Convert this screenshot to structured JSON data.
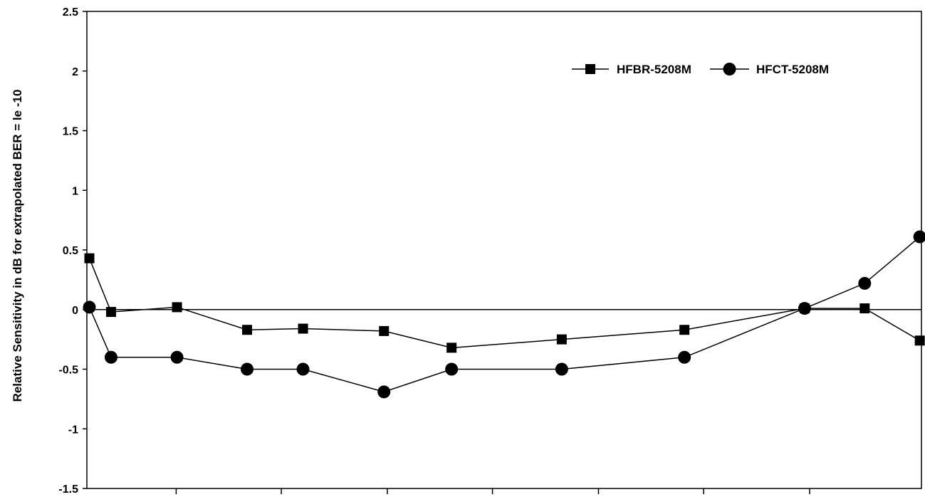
{
  "chart_data": {
    "type": "line",
    "title": "",
    "xlabel": "",
    "ylabel": "Relative Sensitivity in dB for extrapolated BER = le -10",
    "ylim": [
      -1.5,
      2.5
    ],
    "yticks": [
      2.5,
      2,
      1.5,
      1,
      0.5,
      0,
      -0.5,
      -1,
      -1.5
    ],
    "ytick_labels": [
      "2.5",
      "2",
      "1.5",
      "1",
      "0.5",
      "0",
      "-0.5",
      "-1",
      "-1.5"
    ],
    "xlim": [
      0,
      100
    ],
    "xticks": [
      10.7,
      23.3,
      36.0,
      48.6,
      61.3,
      73.9,
      86.6
    ],
    "zero_line": true,
    "grid": false,
    "legend_position": "top-right",
    "series": [
      {
        "name": "HFBR-5208M",
        "marker": "square",
        "color": "#000000",
        "points": [
          {
            "x": 0.3,
            "y": 0.43
          },
          {
            "x": 2.9,
            "y": -0.02
          },
          {
            "x": 10.8,
            "y": 0.02
          },
          {
            "x": 19.2,
            "y": -0.17
          },
          {
            "x": 25.9,
            "y": -0.16
          },
          {
            "x": 35.6,
            "y": -0.18
          },
          {
            "x": 43.7,
            "y": -0.32
          },
          {
            "x": 56.9,
            "y": -0.25
          },
          {
            "x": 71.6,
            "y": -0.17
          },
          {
            "x": 86.0,
            "y": 0.01
          },
          {
            "x": 93.2,
            "y": 0.01
          },
          {
            "x": 99.8,
            "y": -0.26
          }
        ]
      },
      {
        "name": "HFCT-5208M",
        "marker": "circle",
        "color": "#000000",
        "points": [
          {
            "x": 0.3,
            "y": 0.02
          },
          {
            "x": 2.9,
            "y": -0.4
          },
          {
            "x": 10.8,
            "y": -0.4
          },
          {
            "x": 19.2,
            "y": -0.5
          },
          {
            "x": 25.9,
            "y": -0.5
          },
          {
            "x": 35.6,
            "y": -0.69
          },
          {
            "x": 43.7,
            "y": -0.5
          },
          {
            "x": 56.9,
            "y": -0.5
          },
          {
            "x": 71.6,
            "y": -0.4
          },
          {
            "x": 86.0,
            "y": 0.01
          },
          {
            "x": 93.2,
            "y": 0.22
          },
          {
            "x": 99.8,
            "y": 0.61
          }
        ]
      }
    ]
  }
}
